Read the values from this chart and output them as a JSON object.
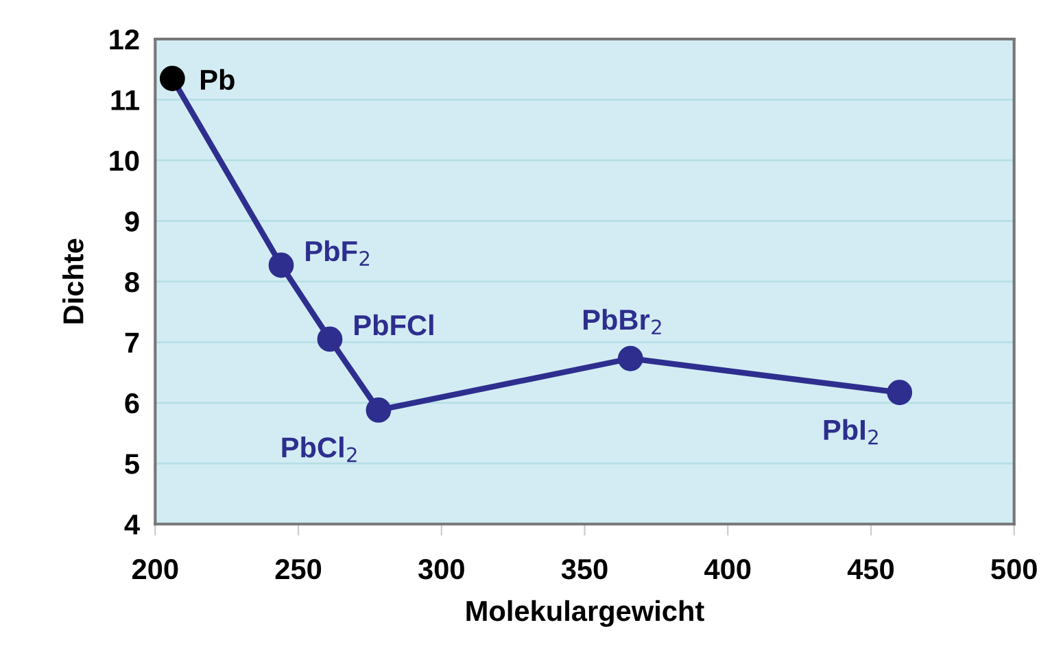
{
  "chart_data": {
    "type": "line",
    "xlabel": "Molekulargewicht",
    "ylabel": "Dichte",
    "x": [
      206,
      244,
      261,
      278,
      366,
      460
    ],
    "series": [
      {
        "color": "#2e2e8f",
        "colors": [
          "#000000",
          "#2e2e8f",
          "#2e2e8f",
          "#2e2e8f",
          "#2e2e8f",
          "#2e2e8f"
        ],
        "values": [
          11.35,
          8.27,
          7.05,
          5.88,
          6.73,
          6.17
        ]
      }
    ],
    "annotations": [
      {
        "text": "Pb",
        "x": 206,
        "y": 11.35
      },
      {
        "text": "PbF$_{2}$",
        "x": 244,
        "y": 8.27
      },
      {
        "text": "PbFCl",
        "x": 261,
        "y": 7.05
      },
      {
        "text": "PbCl$_{2}$",
        "x": 278,
        "y": 5.88
      },
      {
        "text": "PbBr$_{2}$",
        "x": 366,
        "y": 6.73
      },
      {
        "text": "PbI$_{2}$",
        "x": 460,
        "y": 6.17
      }
    ],
    "xlim": [
      200,
      500
    ],
    "xticks": [
      200,
      250,
      300,
      350,
      400,
      450,
      500
    ],
    "ylim": [
      4,
      12
    ],
    "yticks": [
      4,
      5,
      6,
      7,
      8,
      9,
      10,
      11,
      12
    ],
    "grid": "y",
    "marker": "circle",
    "line_style": "solid"
  }
}
